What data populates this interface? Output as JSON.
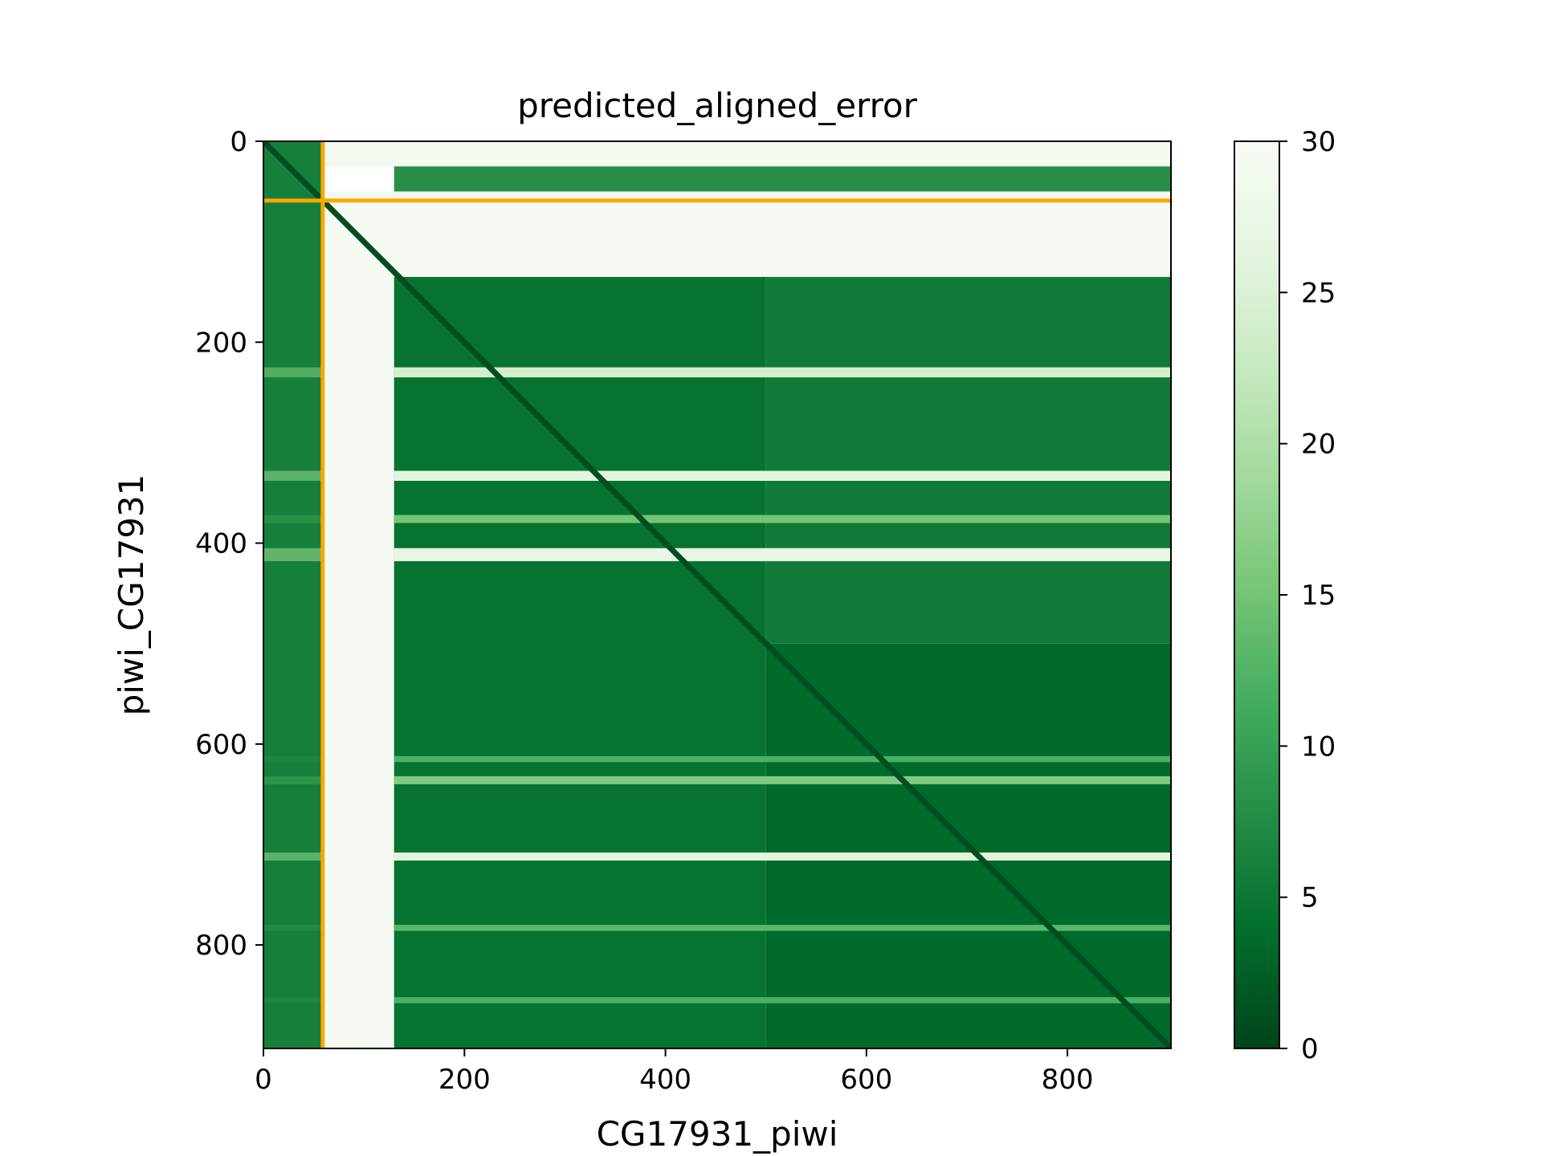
{
  "chart_data": {
    "type": "heatmap",
    "title": "predicted_aligned_error",
    "xlabel": "CG17931_piwi",
    "ylabel": "piwi_CG17931",
    "xlim": [
      0,
      903
    ],
    "ylim": [
      903,
      0
    ],
    "x_ticks": [
      0,
      200,
      400,
      600,
      800
    ],
    "y_ticks": [
      0,
      200,
      400,
      600,
      800
    ],
    "colormap": "Greens_r",
    "colorbar": {
      "range": [
        0,
        30
      ],
      "ticks": [
        0,
        5,
        10,
        15,
        20,
        25,
        30
      ],
      "colors": [
        "#00441b",
        "#006d2c",
        "#238b45",
        "#41ab5d",
        "#74c476",
        "#a1d99b",
        "#c7e9c0",
        "#e5f5e0",
        "#f7fcf5"
      ]
    },
    "chain_boundary": {
      "value": 59,
      "color": "#FFA500"
    },
    "diagonal_value": 0.8,
    "regions": [
      {
        "x": [
          0,
          59
        ],
        "y": [
          0,
          59
        ],
        "value": 6
      },
      {
        "x": [
          59,
          903
        ],
        "y": [
          0,
          25
        ],
        "value": 29
      },
      {
        "x": [
          130,
          903
        ],
        "y": [
          25,
          50
        ],
        "value": 8
      },
      {
        "x": [
          59,
          903
        ],
        "y": [
          50,
          59
        ],
        "value": 29
      },
      {
        "x": [
          0,
          59
        ],
        "y": [
          59,
          903
        ],
        "value": 6
      },
      {
        "x": [
          59,
          903
        ],
        "y": [
          59,
          135
        ],
        "value": 29.5
      },
      {
        "x": [
          59,
          130
        ],
        "y": [
          135,
          903
        ],
        "value": 29.5
      },
      {
        "x": [
          130,
          500
        ],
        "y": [
          135,
          903
        ],
        "value": 4.5
      },
      {
        "x": [
          500,
          903
        ],
        "y": [
          135,
          500
        ],
        "value": 5.5
      },
      {
        "x": [
          500,
          903
        ],
        "y": [
          500,
          903
        ],
        "value": 3.5
      }
    ],
    "bands": [
      {
        "y": [
          225,
          235
        ],
        "value": 24
      },
      {
        "y": [
          328,
          338
        ],
        "value": 26
      },
      {
        "y": [
          372,
          380
        ],
        "value": 15
      },
      {
        "y": [
          405,
          418
        ],
        "value": 27
      },
      {
        "y": [
          612,
          618
        ],
        "value": 12
      },
      {
        "y": [
          632,
          640
        ],
        "value": 16
      },
      {
        "y": [
          708,
          716
        ],
        "value": 26
      },
      {
        "y": [
          780,
          786
        ],
        "value": 13
      },
      {
        "y": [
          852,
          858
        ],
        "value": 12
      }
    ]
  }
}
